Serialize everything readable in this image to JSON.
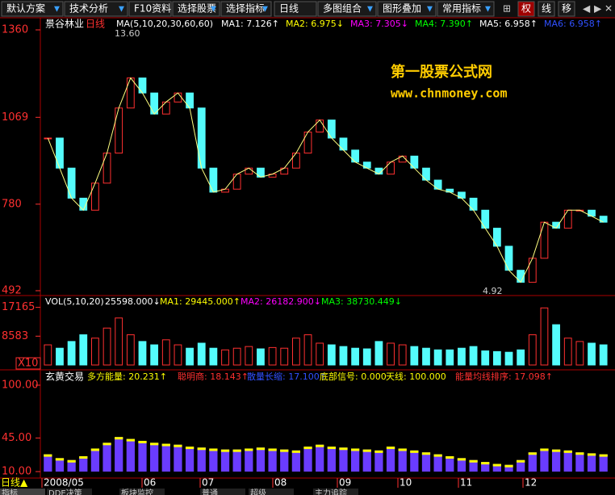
{
  "toolbar": {
    "items": [
      "默认方案",
      "技术分析",
      "F10资料",
      "选择股票",
      "选择指标",
      "日线",
      "多图组合",
      "图形叠加",
      "常用指标"
    ],
    "tools": [
      "权",
      "线",
      "移"
    ]
  },
  "main_panel": {
    "stock": "景谷林业",
    "period": "日线",
    "ma_label": "MA(5,10,20,30,60,60)",
    "ma_values": [
      {
        "text": "MA1: 7.126↑",
        "color": "#ffffff"
      },
      {
        "text": "MA2: 6.975↓",
        "color": "#ffff00"
      },
      {
        "text": "MA3: 7.305↓",
        "color": "#ff00ff"
      },
      {
        "text": "MA4: 7.390↑",
        "color": "#00ff00"
      },
      {
        "text": "MA5: 6.958↑",
        "color": "#ffffff"
      },
      {
        "text": "MA6: 6.958↑",
        "color": "#3050ff"
      }
    ],
    "high_note": "13.60",
    "low_note": "4.92",
    "watermark_title": "第一股票公式网",
    "watermark_url": "www.chnmoney.com",
    "ylim": [
      492,
      1360
    ],
    "yticks": [
      1360,
      1069,
      780,
      492
    ],
    "closes": [
      1000,
      900,
      800,
      760,
      850,
      950,
      1100,
      1200,
      1150,
      1080,
      1120,
      1150,
      1100,
      900,
      820,
      830,
      880,
      900,
      870,
      880,
      900,
      950,
      1020,
      1060,
      1000,
      960,
      920,
      900,
      880,
      920,
      940,
      900,
      860,
      830,
      820,
      800,
      760,
      700,
      640,
      560,
      520,
      600,
      720,
      700,
      760,
      760,
      740,
      720
    ]
  },
  "volume_panel": {
    "label": "VOL(5,10,20)",
    "items": [
      {
        "text": "25598.000↓",
        "color": "#ffffff"
      },
      {
        "text": "MA1: 29445.000↑",
        "color": "#ffff00"
      },
      {
        "text": "MA2: 26182.900↓",
        "color": "#ff00ff"
      },
      {
        "text": "MA3: 38730.449↓",
        "color": "#00ff00"
      }
    ],
    "ylim": [
      0,
      19000
    ],
    "yticks": [
      17165,
      8583
    ],
    "unit": "X10",
    "volumes": [
      6000,
      5000,
      7000,
      9000,
      8000,
      11000,
      14000,
      9000,
      7000,
      6000,
      7500,
      6000,
      5000,
      6500,
      5000,
      4500,
      5000,
      5500,
      4800,
      5200,
      5000,
      8000,
      9000,
      6500,
      6000,
      5500,
      5000,
      4800,
      7000,
      6500,
      6000,
      5500,
      5000,
      4500,
      4500,
      5000,
      5500,
      4200,
      4000,
      3800,
      4500,
      9000,
      17000,
      12000,
      8000,
      7000,
      6500,
      6000
    ]
  },
  "indicator_panel": {
    "title": "玄黄交易",
    "items": [
      {
        "text": "多方能量: 20.231↑",
        "color": "#ffff00"
      },
      {
        "text": "聪明商: 18.143↑",
        "color": "#ff3030"
      },
      {
        "text": "散量长缩: 17.100↑",
        "color": "#3050ff"
      },
      {
        "text": "底部信号: 0.000",
        "color": "#ffff00"
      },
      {
        "text": "天线: 100.000",
        "color": "#ffff00"
      },
      {
        "text": "能量均线排序: 17.098↑",
        "color": "#ff3030"
      }
    ],
    "ylim": [
      10,
      100
    ],
    "yticks": [
      {
        "value": 100,
        "label": "100.00"
      },
      {
        "value": 45,
        "label": "45.00"
      },
      {
        "value": 10,
        "label": "10.00"
      }
    ],
    "energy": [
      28,
      24,
      22,
      26,
      34,
      40,
      46,
      44,
      42,
      40,
      39,
      38,
      36,
      35,
      34,
      33,
      33,
      34,
      35,
      34,
      33,
      32,
      36,
      38,
      36,
      35,
      34,
      33,
      32,
      36,
      34,
      32,
      30,
      28,
      26,
      24,
      22,
      20,
      18,
      17,
      22,
      30,
      34,
      33,
      32,
      30,
      29,
      28
    ]
  },
  "x_axis": {
    "labels": [
      "2008/05",
      "06",
      "07",
      "08",
      "09",
      "10",
      "11",
      "12"
    ]
  },
  "footer": {
    "period": "日线▲",
    "tabs": [
      "指标",
      "DDE决策",
      "板块监控",
      "普通",
      "超级",
      "主力追踪"
    ]
  }
}
